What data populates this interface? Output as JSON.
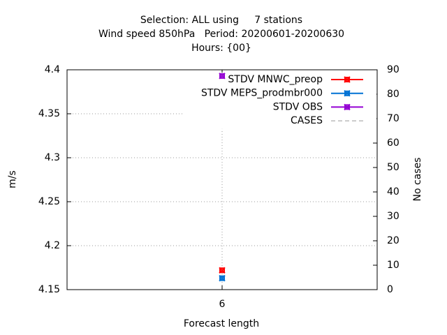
{
  "chart_data": {
    "type": "line",
    "title_lines": [
      "Selection: ALL using     7 stations",
      "Wind speed 850hPa   Period: 20200601-20200630",
      "Hours: {00}"
    ],
    "xlabel": "Forecast length",
    "ylabel": "m/s",
    "y2label": "No cases",
    "x": [
      6
    ],
    "xlim": [
      5,
      7
    ],
    "xticks": [
      6
    ],
    "ylim": [
      4.15,
      4.4
    ],
    "yticks": [
      4.15,
      4.2,
      4.25,
      4.3,
      4.35,
      4.4
    ],
    "y2lim": [
      0,
      90
    ],
    "y2ticks": [
      0,
      10,
      20,
      30,
      40,
      50,
      60,
      70,
      80,
      90
    ],
    "grid": true,
    "legend": "top-right",
    "series": [
      {
        "name": "STDV MNWC_preop",
        "color": "#ff0000",
        "values": [
          4.172
        ]
      },
      {
        "name": "STDV MEPS_prodmbr000",
        "color": "#0072d4",
        "values": [
          4.163
        ]
      },
      {
        "name": "STDV OBS",
        "color": "#9400d3",
        "values": [
          4.393
        ]
      },
      {
        "name": "CASES",
        "color": "#999999",
        "axis": "y2",
        "dashed": true,
        "values": [
          null
        ]
      }
    ]
  }
}
